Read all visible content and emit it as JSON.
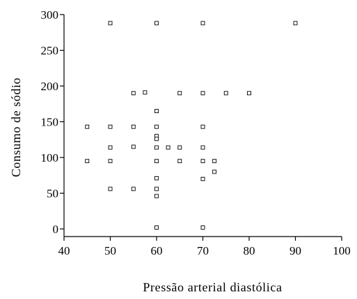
{
  "chart_data": {
    "type": "scatter",
    "title": "",
    "xlabel": "Pressão arterial diastólica",
    "ylabel": "Consumo de sódio",
    "xlim": [
      40,
      100
    ],
    "ylim": [
      0,
      300
    ],
    "xticks": [
      40,
      50,
      60,
      70,
      80,
      90,
      100
    ],
    "yticks": [
      0,
      50,
      100,
      150,
      200,
      250,
      300
    ],
    "xtick_labels": [
      "40",
      "50",
      "60",
      "70",
      "80",
      "90",
      "100"
    ],
    "ytick_labels": [
      "0",
      "50",
      "100",
      "150",
      "200",
      "250",
      "300"
    ],
    "grid": false,
    "legend": "none",
    "marker": "open-square",
    "points": [
      {
        "x": 50,
        "y": 288
      },
      {
        "x": 60,
        "y": 288
      },
      {
        "x": 70,
        "y": 288
      },
      {
        "x": 90,
        "y": 288
      },
      {
        "x": 55,
        "y": 190
      },
      {
        "x": 57.5,
        "y": 191
      },
      {
        "x": 65,
        "y": 190
      },
      {
        "x": 70,
        "y": 190
      },
      {
        "x": 75,
        "y": 190
      },
      {
        "x": 80,
        "y": 190
      },
      {
        "x": 60,
        "y": 165
      },
      {
        "x": 45,
        "y": 143
      },
      {
        "x": 50,
        "y": 143
      },
      {
        "x": 55,
        "y": 143
      },
      {
        "x": 60,
        "y": 143
      },
      {
        "x": 70,
        "y": 143
      },
      {
        "x": 60,
        "y": 130
      },
      {
        "x": 60,
        "y": 126
      },
      {
        "x": 50,
        "y": 114
      },
      {
        "x": 55,
        "y": 115
      },
      {
        "x": 60,
        "y": 114
      },
      {
        "x": 62.5,
        "y": 114
      },
      {
        "x": 65,
        "y": 114
      },
      {
        "x": 70,
        "y": 114
      },
      {
        "x": 45,
        "y": 95
      },
      {
        "x": 50,
        "y": 95
      },
      {
        "x": 60,
        "y": 95
      },
      {
        "x": 65,
        "y": 95
      },
      {
        "x": 70,
        "y": 95
      },
      {
        "x": 72.5,
        "y": 95
      },
      {
        "x": 72.5,
        "y": 80
      },
      {
        "x": 60,
        "y": 71
      },
      {
        "x": 70,
        "y": 70
      },
      {
        "x": 50,
        "y": 56
      },
      {
        "x": 55,
        "y": 56
      },
      {
        "x": 60,
        "y": 56
      },
      {
        "x": 60,
        "y": 46
      },
      {
        "x": 60,
        "y": 2
      },
      {
        "x": 70,
        "y": 2
      }
    ]
  }
}
